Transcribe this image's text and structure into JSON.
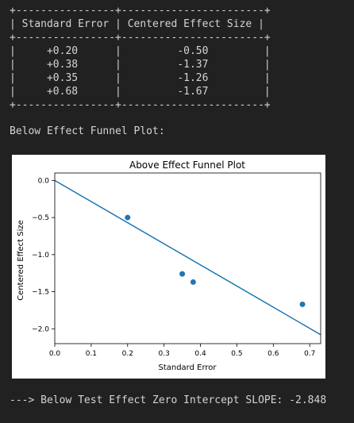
{
  "output": {
    "table": {
      "border": "+----------------+-----------------------+",
      "header": "| Standard Error | Centered Effect Size |",
      "rows": [
        "|     +0.20      |         -0.50         |",
        "|     +0.38      |         -1.37         |",
        "|     +0.35      |         -1.26         |",
        "|     +0.68      |         -1.67         |"
      ]
    },
    "plot_caption": "Below Effect Funnel Plot:",
    "slope_line": "---> Below Test Effect Zero Intercept SLOPE: -2.848"
  },
  "chart_data": {
    "type": "scatter",
    "title": "Above Effect Funnel Plot",
    "xlabel": "Standard Error",
    "ylabel": "Centered Effect Size",
    "xlim": [
      0.0,
      0.73
    ],
    "ylim": [
      -2.2,
      0.1
    ],
    "xticks": [
      0.0,
      0.1,
      0.2,
      0.3,
      0.4,
      0.5,
      0.6,
      0.7
    ],
    "yticks": [
      0.0,
      -0.5,
      -1.0,
      -1.5,
      -2.0
    ],
    "xtick_labels": [
      "0.0",
      "0.1",
      "0.2",
      "0.3",
      "0.4",
      "0.5",
      "0.6",
      "0.7"
    ],
    "ytick_labels": [
      "0.0",
      "−0.5",
      "−1.0",
      "−1.5",
      "−2.0"
    ],
    "points": {
      "x": [
        0.2,
        0.38,
        0.35,
        0.68
      ],
      "y": [
        -0.5,
        -1.37,
        -1.26,
        -1.67
      ]
    },
    "fit_line": {
      "intercept": 0.0,
      "slope": -2.848
    },
    "grid": false,
    "color": "#1f77b4"
  }
}
